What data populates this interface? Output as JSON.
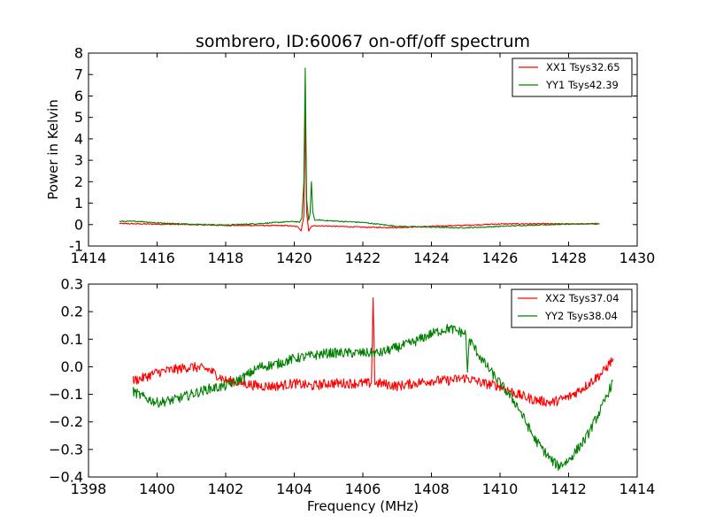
{
  "chart_data": [
    {
      "type": "line",
      "title": "sombrero, ID:60067 on-off/off spectrum",
      "xlabel": "",
      "ylabel": "Power in Kelvin",
      "xlim": [
        1414,
        1430
      ],
      "ylim": [
        -1,
        8
      ],
      "xticks": [
        1414,
        1416,
        1418,
        1420,
        1422,
        1424,
        1426,
        1428,
        1430
      ],
      "yticks": [
        -1,
        0,
        1,
        2,
        3,
        4,
        5,
        6,
        7,
        8
      ],
      "legend_position": "top-right",
      "grid": false,
      "series": [
        {
          "name": "XX1 Tsys32.65",
          "color": "#ff0000",
          "x": [
            1414.9,
            1416,
            1417,
            1418,
            1419,
            1419.8,
            1420.1,
            1420.2,
            1420.28,
            1420.32,
            1420.36,
            1420.42,
            1420.5,
            1420.6,
            1421,
            1422,
            1423,
            1424,
            1425,
            1426,
            1427,
            1428,
            1428.9
          ],
          "y": [
            0.05,
            0.02,
            0.0,
            -0.04,
            -0.04,
            -0.05,
            -0.1,
            -0.3,
            0.4,
            5.1,
            0.6,
            -0.3,
            -0.08,
            -0.05,
            -0.07,
            -0.12,
            -0.14,
            -0.08,
            -0.03,
            0.03,
            0.04,
            0.03,
            0.03
          ]
        },
        {
          "name": "YY1 Tsys42.39",
          "color": "#008000",
          "x": [
            1414.9,
            1415.5,
            1416,
            1417,
            1418,
            1419,
            1420,
            1420.15,
            1420.22,
            1420.28,
            1420.32,
            1420.36,
            1420.42,
            1420.46,
            1420.5,
            1420.54,
            1420.6,
            1420.7,
            1421,
            1422,
            1423,
            1424,
            1424.8,
            1425.5,
            1426,
            1427,
            1428,
            1428.9
          ],
          "y": [
            0.15,
            0.15,
            0.08,
            0.02,
            -0.02,
            0.05,
            0.15,
            0.1,
            0.3,
            2.0,
            7.3,
            1.2,
            0.2,
            0.5,
            2.0,
            0.6,
            0.2,
            0.22,
            0.18,
            0.1,
            -0.08,
            -0.12,
            -0.15,
            -0.12,
            -0.08,
            -0.02,
            0.02,
            0.05
          ]
        }
      ]
    },
    {
      "type": "line",
      "title": "",
      "xlabel": "Frequency (MHz)",
      "ylabel": "",
      "xlim": [
        1398,
        1414
      ],
      "ylim": [
        -0.4,
        0.3
      ],
      "xticks": [
        1398,
        1400,
        1402,
        1404,
        1406,
        1408,
        1410,
        1412,
        1414
      ],
      "yticks": [
        -0.4,
        -0.3,
        -0.2,
        -0.1,
        0.0,
        0.1,
        0.2,
        0.3
      ],
      "ytick_labels": [
        "−0.4",
        "−0.3",
        "−0.2",
        "−0.1",
        "0.0",
        "0.1",
        "0.2",
        "0.3"
      ],
      "legend_position": "top-right",
      "grid": false,
      "series": [
        {
          "name": "XX2 Tsys37.04",
          "color": "#ff0000",
          "x": [
            1399.3,
            1399.6,
            1400,
            1400.5,
            1401,
            1401.5,
            1402,
            1402.5,
            1403,
            1403.5,
            1404,
            1404.5,
            1405,
            1405.5,
            1406,
            1406.25,
            1406.3,
            1406.35,
            1406.5,
            1407,
            1407.5,
            1408,
            1408.5,
            1409,
            1409.5,
            1410,
            1410.5,
            1411,
            1411.5,
            1412,
            1412.5,
            1413,
            1413.3
          ],
          "y": [
            -0.05,
            -0.04,
            -0.02,
            -0.01,
            0.0,
            -0.01,
            -0.05,
            -0.06,
            -0.07,
            -0.07,
            -0.06,
            -0.07,
            -0.06,
            -0.06,
            -0.06,
            -0.06,
            0.25,
            -0.06,
            -0.06,
            -0.07,
            -0.06,
            -0.05,
            -0.05,
            -0.04,
            -0.06,
            -0.07,
            -0.1,
            -0.12,
            -0.13,
            -0.11,
            -0.07,
            -0.02,
            0.03
          ]
        },
        {
          "name": "YY2 Tsys38.04",
          "color": "#008000",
          "x": [
            1399.3,
            1399.6,
            1400,
            1400.5,
            1401,
            1401.5,
            1402,
            1402.5,
            1403,
            1403.5,
            1404,
            1404.5,
            1405,
            1405.5,
            1406,
            1406.5,
            1407,
            1407.5,
            1408,
            1408.5,
            1409,
            1409.05,
            1409.1,
            1409.5,
            1410,
            1410.5,
            1411,
            1411.5,
            1411.7,
            1412,
            1412.5,
            1413,
            1413.3
          ],
          "y": [
            -0.09,
            -0.11,
            -0.13,
            -0.12,
            -0.1,
            -0.08,
            -0.07,
            -0.04,
            0.0,
            0.01,
            0.03,
            0.04,
            0.05,
            0.05,
            0.05,
            0.05,
            0.07,
            0.09,
            0.12,
            0.14,
            0.12,
            -0.02,
            0.1,
            0.02,
            -0.06,
            -0.14,
            -0.26,
            -0.34,
            -0.36,
            -0.34,
            -0.26,
            -0.14,
            -0.05
          ]
        }
      ]
    }
  ]
}
